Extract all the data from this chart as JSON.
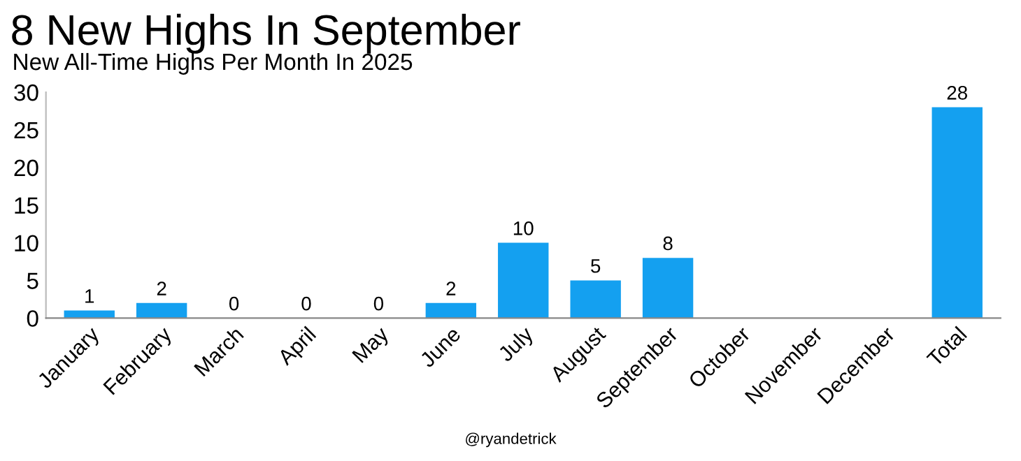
{
  "chart_data": {
    "type": "bar",
    "title": "8 New Highs In September",
    "subtitle": "New All-Time Highs Per Month In 2025",
    "categories": [
      "January",
      "February",
      "March",
      "April",
      "May",
      "June",
      "July",
      "August",
      "September",
      "October",
      "November",
      "December",
      "Total"
    ],
    "values": [
      1,
      2,
      0,
      0,
      0,
      2,
      10,
      5,
      8,
      null,
      null,
      null,
      28
    ],
    "value_labels": [
      "1",
      "2",
      "0",
      "0",
      "0",
      "2",
      "10",
      "5",
      "8",
      null,
      null,
      null,
      "28"
    ],
    "color": "#14a0f0",
    "ylim": [
      0,
      30
    ],
    "yticks": [
      0,
      5,
      10,
      15,
      20,
      25,
      30
    ],
    "grid": false,
    "annotations": [
      "@ryandetrick"
    ]
  }
}
